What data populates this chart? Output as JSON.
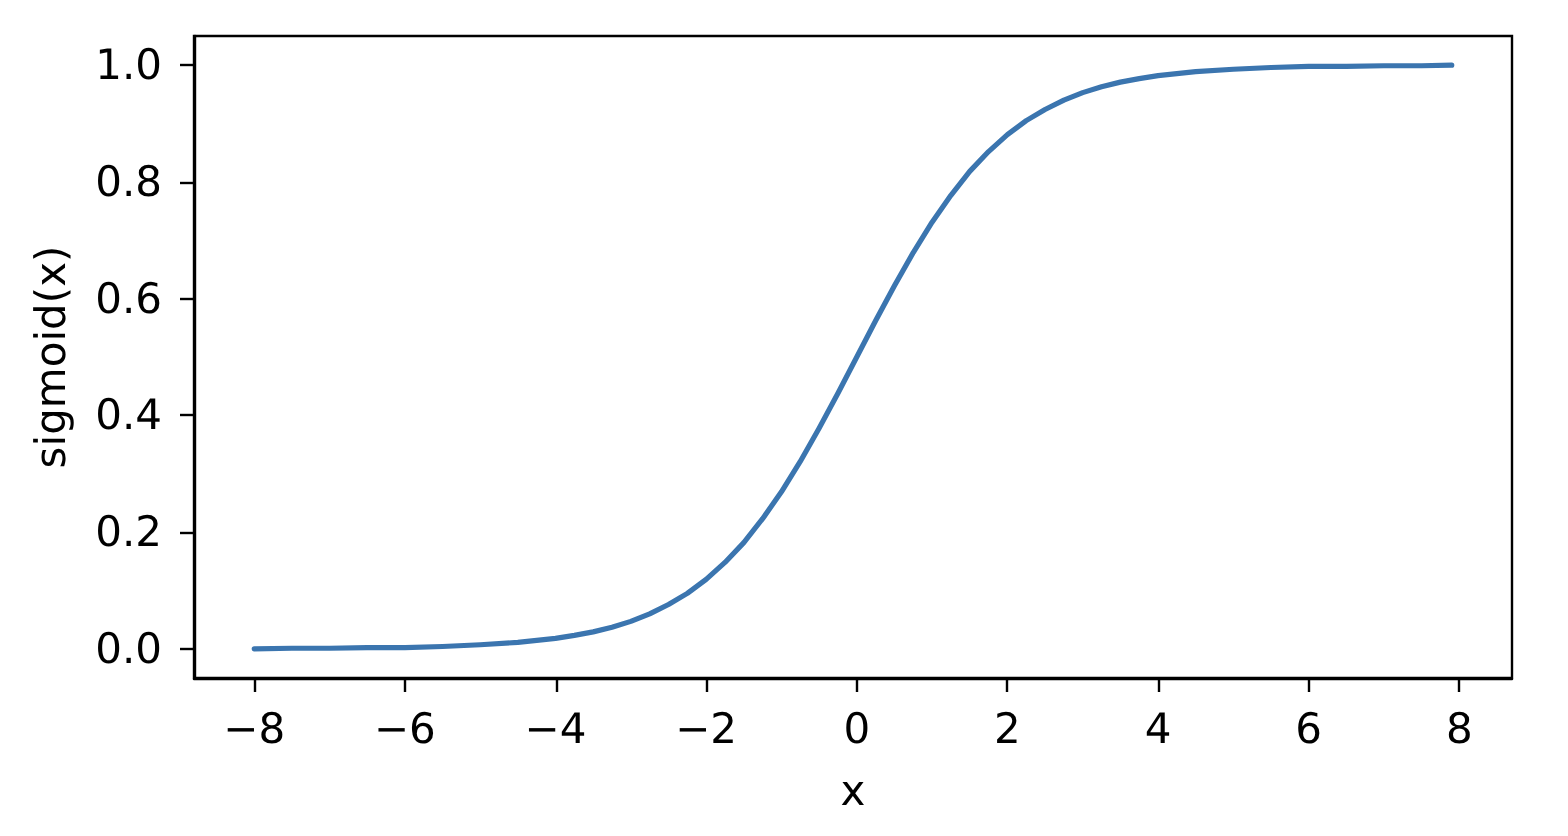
{
  "chart_data": {
    "type": "line",
    "xlabel": "x",
    "ylabel": "sigmoid(x)",
    "x": [
      -8,
      -7.5,
      -7,
      -6.5,
      -6,
      -5.5,
      -5,
      -4.5,
      -4,
      -3.75,
      -3.5,
      -3.25,
      -3,
      -2.75,
      -2.5,
      -2.25,
      -2,
      -1.75,
      -1.5,
      -1.25,
      -1,
      -0.75,
      -0.5,
      -0.25,
      0,
      0.25,
      0.5,
      0.75,
      1,
      1.25,
      1.5,
      1.75,
      2,
      2.25,
      2.5,
      2.75,
      3,
      3.25,
      3.5,
      3.75,
      4,
      4.5,
      5,
      5.5,
      6,
      6.5,
      7,
      7.5,
      7.9
    ],
    "series": [
      {
        "color": "#3b75af",
        "values": [
          0.0,
          0.001,
          0.001,
          0.002,
          0.002,
          0.004,
          0.007,
          0.011,
          0.018,
          0.023,
          0.029,
          0.037,
          0.047,
          0.06,
          0.076,
          0.095,
          0.119,
          0.148,
          0.182,
          0.223,
          0.269,
          0.321,
          0.378,
          0.438,
          0.5,
          0.562,
          0.622,
          0.679,
          0.731,
          0.777,
          0.818,
          0.852,
          0.881,
          0.905,
          0.924,
          0.94,
          0.953,
          0.963,
          0.971,
          0.977,
          0.982,
          0.989,
          0.993,
          0.996,
          0.998,
          0.998,
          0.999,
          0.999,
          1.0
        ]
      }
    ],
    "xlim": [
      -8.8,
      8.7
    ],
    "ylim": [
      -0.05,
      1.05
    ],
    "xticks": [
      {
        "value": -8,
        "label": "−8"
      },
      {
        "value": -6,
        "label": "−6"
      },
      {
        "value": -4,
        "label": "−4"
      },
      {
        "value": -2,
        "label": "−2"
      },
      0,
      2,
      4,
      6,
      8
    ],
    "yticks": [
      {
        "value": 0,
        "label": "0.0"
      },
      0.2,
      0.4,
      0.6,
      0.8,
      {
        "value": 1,
        "label": "1.0"
      }
    ],
    "grid": false,
    "marker": "none",
    "line_style": "solid"
  }
}
